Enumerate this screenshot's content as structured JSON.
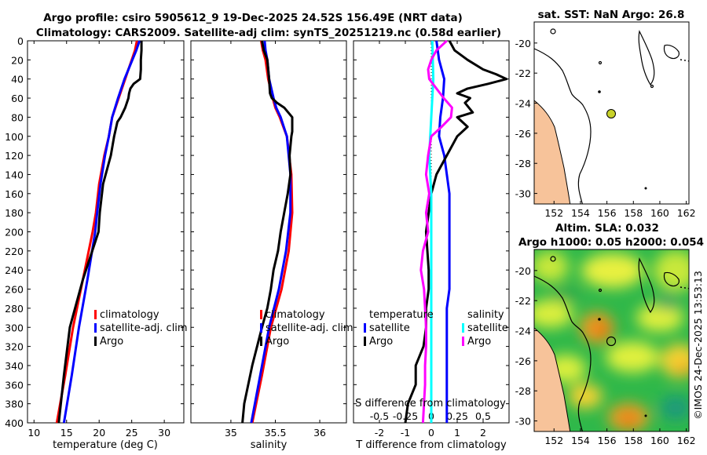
{
  "header": {
    "title_line1": "Argo profile: csiro 5905612_9 19-Dec-2025 24.52S 156.49E (NRT data)",
    "title_line2": "Climatology: CARS2009. Satellite-adj clim: synTS_20251219.nc (0.58d earlier)"
  },
  "colors": {
    "climatology": "#ff0000",
    "satellite_adj_clim": "#0000ff",
    "argo": "#000000",
    "temp_diff_satellite": "#0000ff",
    "temp_diff_argo": "#000000",
    "sal_diff_satellite": "#00ffff",
    "sal_diff_argo": "#ff00ff",
    "land": "#f7c39a"
  },
  "chart_data": [
    {
      "id": "temperature",
      "type": "line",
      "xlabel": "temperature (deg C)",
      "ylabel": "",
      "xlim": [
        9,
        33
      ],
      "ylim": [
        400,
        0
      ],
      "xticks": [
        10,
        15,
        20,
        25,
        30
      ],
      "yticks": [
        0,
        20,
        40,
        60,
        80,
        100,
        120,
        140,
        160,
        180,
        200,
        220,
        240,
        260,
        280,
        300,
        320,
        340,
        360,
        380,
        400
      ],
      "legend": [
        "climatology",
        "satellite-adj. clim",
        "Argo"
      ],
      "legend_position": "lower-right",
      "series": [
        {
          "name": "climatology",
          "color": "#ff0000",
          "depth": [
            0,
            10,
            20,
            30,
            40,
            50,
            60,
            80,
            100,
            120,
            150,
            180,
            200,
            250,
            300,
            350,
            400
          ],
          "values": [
            25.8,
            25.5,
            25.0,
            24.5,
            24.0,
            23.5,
            23.0,
            22.0,
            21.5,
            20.8,
            20.0,
            19.5,
            19.0,
            17.5,
            16.0,
            14.8,
            13.5
          ]
        },
        {
          "name": "satellite-adj. clim",
          "color": "#0000ff",
          "depth": [
            0,
            10,
            20,
            30,
            40,
            50,
            60,
            80,
            100,
            120,
            150,
            180,
            200,
            250,
            300,
            350,
            400
          ],
          "values": [
            26.2,
            25.7,
            25.1,
            24.5,
            23.9,
            23.4,
            22.9,
            22.0,
            21.5,
            20.9,
            20.2,
            19.7,
            19.4,
            18.2,
            16.9,
            15.8,
            14.6
          ]
        },
        {
          "name": "Argo",
          "color": "#000000",
          "depth": [
            0,
            10,
            20,
            30,
            40,
            45,
            50,
            55,
            60,
            70,
            80,
            85,
            100,
            120,
            150,
            180,
            200,
            250,
            300,
            350,
            400
          ],
          "values": [
            26.5,
            26.5,
            26.4,
            26.4,
            26.3,
            25.3,
            24.8,
            24.6,
            24.5,
            24.0,
            23.3,
            22.8,
            22.3,
            21.8,
            20.6,
            20.1,
            19.9,
            17.5,
            15.5,
            14.6,
            13.8
          ]
        }
      ]
    },
    {
      "id": "salinity",
      "type": "line",
      "xlabel": "salinity",
      "ylabel": "",
      "xlim": [
        34.55,
        36.3
      ],
      "ylim": [
        400,
        0
      ],
      "xticks": [
        35,
        35.5,
        36
      ],
      "legend": [
        "climatology",
        "satellite-adj. clim",
        "Argo"
      ],
      "legend_position": "lower-right",
      "series": [
        {
          "name": "climatology",
          "color": "#ff0000",
          "depth": [
            0,
            10,
            20,
            40,
            60,
            70,
            80,
            100,
            140,
            180,
            220,
            260,
            300,
            350,
            400
          ],
          "values": [
            35.34,
            35.36,
            35.39,
            35.42,
            35.47,
            35.5,
            35.55,
            35.63,
            35.68,
            35.69,
            35.65,
            35.57,
            35.45,
            35.35,
            35.24
          ]
        },
        {
          "name": "satellite-adj. clim",
          "color": "#0000ff",
          "depth": [
            0,
            10,
            20,
            40,
            60,
            70,
            80,
            100,
            140,
            180,
            220,
            260,
            300,
            350,
            400
          ],
          "values": [
            35.38,
            35.39,
            35.41,
            35.43,
            35.48,
            35.51,
            35.56,
            35.63,
            35.67,
            35.67,
            35.62,
            35.54,
            35.43,
            35.33,
            35.23
          ]
        },
        {
          "name": "Argo",
          "color": "#000000",
          "depth": [
            0,
            10,
            20,
            40,
            55,
            60,
            65,
            70,
            80,
            95,
            100,
            120,
            140,
            160,
            180,
            200,
            220,
            240,
            260,
            280,
            300,
            340,
            380,
            400
          ],
          "values": [
            35.35,
            35.37,
            35.41,
            35.43,
            35.44,
            35.46,
            35.52,
            35.6,
            35.69,
            35.69,
            35.68,
            35.66,
            35.67,
            35.64,
            35.6,
            35.56,
            35.53,
            35.48,
            35.45,
            35.41,
            35.35,
            35.24,
            35.15,
            35.13
          ]
        }
      ]
    },
    {
      "id": "differences",
      "type": "line",
      "xlabel": "T difference from climatology",
      "xlabel_top": "S difference from climatology",
      "xlim": [
        -3.0,
        3.0
      ],
      "ylim": [
        400,
        0
      ],
      "xticks": [
        -2,
        -1,
        0,
        1,
        2
      ],
      "xtick_labels": [
        "-2",
        "-1",
        "0",
        "1",
        "2"
      ],
      "s_tick_labels": [
        "-0.5",
        "-0.25",
        "0",
        "0.25",
        "0.5"
      ],
      "legend_temperature": {
        "title": "temperature",
        "items": [
          "satellite",
          "Argo"
        ]
      },
      "legend_salinity": {
        "title": "salinity",
        "items": [
          "satellite",
          "Argo"
        ]
      },
      "series": [
        {
          "name": "T satellite",
          "color": "#0000ff",
          "depth": [
            0,
            20,
            40,
            60,
            80,
            100,
            120,
            160,
            200,
            260,
            280,
            300,
            340,
            400
          ],
          "values": [
            0.2,
            0.3,
            0.5,
            0.45,
            0.35,
            0.3,
            0.5,
            0.7,
            0.7,
            0.7,
            0.6,
            0.6,
            0.6,
            0.6
          ]
        },
        {
          "name": "T Argo",
          "color": "#000000",
          "depth": [
            0,
            10,
            20,
            30,
            35,
            40,
            45,
            50,
            55,
            60,
            65,
            75,
            80,
            90,
            100,
            120,
            140,
            160,
            200,
            240,
            260,
            280,
            300,
            320,
            340,
            360,
            380,
            400
          ],
          "values": [
            0.7,
            0.9,
            1.4,
            2.0,
            2.5,
            2.9,
            2.2,
            1.4,
            1.0,
            1.5,
            1.3,
            1.6,
            1.0,
            1.4,
            1.0,
            0.6,
            0.2,
            0.0,
            -0.2,
            -0.1,
            -0.1,
            -0.2,
            -0.2,
            -0.3,
            -0.6,
            -0.6,
            -0.9,
            -1.0
          ]
        },
        {
          "name": "S satellite",
          "color": "#00ffff",
          "depth": [
            0,
            40,
            80,
            120,
            160,
            200,
            260,
            300,
            340,
            400
          ],
          "values": [
            0.01,
            0.02,
            0.0,
            -0.02,
            0.0,
            0.0,
            0.0,
            0.0,
            0.0,
            0.0
          ]
        },
        {
          "name": "S Argo",
          "color": "#ff00ff",
          "depth": [
            0,
            10,
            20,
            30,
            40,
            50,
            60,
            70,
            80,
            90,
            100,
            120,
            140,
            160,
            180,
            200,
            220,
            240,
            260,
            280,
            300,
            320,
            340,
            360,
            400
          ],
          "values": [
            0.15,
            0.05,
            0.0,
            -0.03,
            -0.02,
            0.05,
            0.12,
            0.2,
            0.19,
            0.1,
            0.0,
            -0.03,
            -0.05,
            -0.02,
            -0.05,
            -0.03,
            -0.08,
            -0.1,
            -0.07,
            -0.06,
            -0.05,
            -0.05,
            -0.06,
            -0.06,
            -0.08
          ]
        }
      ]
    },
    {
      "id": "sst_map",
      "type": "heatmap",
      "title": "sat. SST: NaN Argo: 26.8",
      "xlim": [
        150.5,
        162.2
      ],
      "ylim": [
        -30.7,
        -18.6
      ],
      "xticks": [
        152,
        154,
        156,
        158,
        160,
        162
      ],
      "yticks": [
        -20,
        -22,
        -24,
        -26,
        -28,
        -30
      ],
      "argo_position": {
        "lon": 156.49,
        "lat": -24.52
      }
    },
    {
      "id": "sla_map",
      "type": "heatmap",
      "title": "Altim. SLA: 0.032",
      "subtitle": "Argo h1000: 0.05 h2000: 0.054",
      "xlim": [
        150.5,
        162.2
      ],
      "ylim": [
        -30.7,
        -18.6
      ],
      "xticks": [
        152,
        154,
        156,
        158,
        160,
        162
      ],
      "yticks": [
        -20,
        -22,
        -24,
        -26,
        -28,
        -30
      ],
      "argo_position": {
        "lon": 156.49,
        "lat": -24.52
      }
    }
  ],
  "footer": {
    "timestamp": "©IMOS 24-Dec-2025 13:53:13"
  }
}
